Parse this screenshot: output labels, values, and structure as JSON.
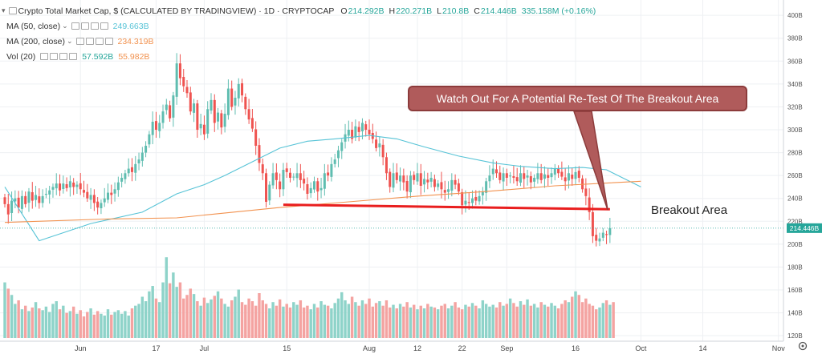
{
  "header": {
    "symbol": "Crypto Total Market Cap, $ (CALCULATED BY TRADINGVIEW) · 1D · CRYPTOCAP",
    "open_label": "O",
    "open": "214.292B",
    "high_label": "H",
    "high": "220.271B",
    "low_label": "L",
    "low": "210.8B",
    "close_label": "C",
    "close": "214.446B",
    "change": "335.158M (+0.16%)"
  },
  "indicators": [
    {
      "label": "MA (50, close)",
      "value": "249.663B",
      "color": "#56c3d6"
    },
    {
      "label": "MA (200, close)",
      "value": "234.319B",
      "color": "#f2924f"
    },
    {
      "label": "Vol (20)",
      "value": "57.592B",
      "value2": "55.982B",
      "color": "#26a69a",
      "color2": "#f2924f"
    }
  ],
  "annotations": {
    "callout": "Watch Out For A Potential Re-Test Of The Breakout Area",
    "breakout_label": "Breakout Area"
  },
  "colors": {
    "up": "#5fbdb0",
    "down": "#ef5350",
    "ma50": "#56c3d6",
    "ma200": "#f2924f",
    "vol_up": "#8ed3c9",
    "vol_down": "#f4a3a1",
    "line": "#e91e1e"
  },
  "chart_data": {
    "type": "candlestick",
    "ylim": [
      118,
      405
    ],
    "yticks": [
      120,
      140,
      160,
      180,
      200,
      220,
      240,
      260,
      280,
      300,
      320,
      340,
      360,
      380,
      400
    ],
    "ytick_labels": [
      "120B",
      "140B",
      "160B",
      "180B",
      "200B",
      "220B",
      "240B",
      "260B",
      "280B",
      "300B",
      "320B",
      "340B",
      "360B",
      "380B",
      "400B"
    ],
    "last_price_label": "214.446B",
    "x_labels": [
      {
        "label": "Jun",
        "bar": 22
      },
      {
        "label": "17",
        "bar": 44
      },
      {
        "label": "Jul",
        "bar": 58
      },
      {
        "label": "15",
        "bar": 82
      },
      {
        "label": "Aug",
        "bar": 106
      },
      {
        "label": "12",
        "bar": 120
      },
      {
        "label": "22",
        "bar": 133
      },
      {
        "label": "Sep",
        "bar": 146
      },
      {
        "label": "16",
        "bar": 166
      },
      {
        "label": "Oct",
        "bar": 185
      },
      {
        "label": "14",
        "bar": 203
      },
      {
        "label": "Nov",
        "bar": 225
      }
    ],
    "total_slots": 226,
    "closes": [
      235,
      226,
      238,
      240,
      232,
      242,
      235,
      246,
      238,
      243,
      236,
      242,
      244,
      247,
      250,
      253,
      247,
      253,
      249,
      255,
      250,
      252,
      248,
      245,
      240,
      243,
      236,
      232,
      236,
      240,
      245,
      243,
      248,
      254,
      258,
      262,
      266,
      263,
      270,
      274,
      280,
      286,
      296,
      307,
      300,
      306,
      316,
      322,
      310,
      330,
      358,
      345,
      338,
      332,
      316,
      323,
      300,
      305,
      296,
      318,
      326,
      306,
      315,
      302,
      314,
      336,
      320,
      328,
      340,
      330,
      318,
      309,
      301,
      286,
      271,
      262,
      237,
      252,
      262,
      256,
      248,
      265,
      263,
      258,
      259,
      262,
      256,
      253,
      244,
      249,
      255,
      246,
      249,
      262,
      260,
      270,
      274,
      282,
      289,
      296,
      300,
      292,
      303,
      298,
      306,
      300,
      296,
      292,
      284,
      288,
      276,
      262,
      250,
      262,
      256,
      260,
      254,
      246,
      260,
      256,
      262,
      251,
      257,
      254,
      258,
      250,
      253,
      248,
      245,
      248,
      256,
      252,
      246,
      234,
      238,
      236,
      240,
      238,
      242,
      246,
      255,
      260,
      266,
      262,
      256,
      262,
      258,
      260,
      258,
      255,
      262,
      257,
      260,
      254,
      258,
      262,
      256,
      261,
      258,
      262,
      266,
      262,
      259,
      255,
      262,
      257,
      263,
      258,
      248,
      242,
      228,
      207,
      203,
      205,
      210,
      208,
      214
    ],
    "ma50": [
      [
        0,
        250
      ],
      [
        10,
        203
      ],
      [
        25,
        218
      ],
      [
        40,
        228
      ],
      [
        50,
        244
      ],
      [
        58,
        252
      ],
      [
        64,
        260
      ],
      [
        72,
        272
      ],
      [
        80,
        284
      ],
      [
        88,
        290
      ],
      [
        96,
        292
      ],
      [
        106,
        295
      ],
      [
        114,
        292
      ],
      [
        122,
        285
      ],
      [
        132,
        277
      ],
      [
        142,
        271
      ],
      [
        150,
        268
      ],
      [
        160,
        266
      ],
      [
        168,
        267
      ],
      [
        175,
        265
      ],
      [
        185,
        250
      ]
    ],
    "ma200": [
      [
        0,
        219
      ],
      [
        30,
        222
      ],
      [
        50,
        223
      ],
      [
        60,
        226
      ],
      [
        80,
        232
      ],
      [
        100,
        237
      ],
      [
        120,
        242
      ],
      [
        140,
        246
      ],
      [
        160,
        251
      ],
      [
        185,
        255
      ]
    ],
    "breakout_line": [
      [
        81,
        234.5
      ],
      [
        176,
        230.5
      ]
    ],
    "volume": [
      0.62,
      0.55,
      0.48,
      0.38,
      0.42,
      0.32,
      0.36,
      0.3,
      0.34,
      0.4,
      0.33,
      0.31,
      0.35,
      0.29,
      0.38,
      0.41,
      0.32,
      0.36,
      0.28,
      0.3,
      0.35,
      0.27,
      0.31,
      0.24,
      0.29,
      0.33,
      0.26,
      0.3,
      0.27,
      0.25,
      0.32,
      0.26,
      0.29,
      0.31,
      0.27,
      0.3,
      0.25,
      0.33,
      0.36,
      0.38,
      0.46,
      0.41,
      0.52,
      0.58,
      0.44,
      0.4,
      0.62,
      0.9,
      0.61,
      0.73,
      0.57,
      0.62,
      0.44,
      0.48,
      0.55,
      0.49,
      0.41,
      0.36,
      0.45,
      0.39,
      0.43,
      0.47,
      0.52,
      0.44,
      0.38,
      0.35,
      0.42,
      0.46,
      0.54,
      0.4,
      0.37,
      0.44,
      0.41,
      0.36,
      0.5,
      0.42,
      0.38,
      0.33,
      0.4,
      0.36,
      0.43,
      0.35,
      0.38,
      0.34,
      0.4,
      0.37,
      0.42,
      0.34,
      0.36,
      0.32,
      0.38,
      0.34,
      0.41,
      0.37,
      0.36,
      0.33,
      0.39,
      0.44,
      0.51,
      0.42,
      0.38,
      0.46,
      0.4,
      0.36,
      0.42,
      0.38,
      0.44,
      0.35,
      0.39,
      0.41,
      0.36,
      0.42,
      0.34,
      0.37,
      0.33,
      0.38,
      0.35,
      0.4,
      0.34,
      0.37,
      0.32,
      0.36,
      0.33,
      0.38,
      0.35,
      0.34,
      0.32,
      0.36,
      0.38,
      0.33,
      0.36,
      0.4,
      0.34,
      0.32,
      0.37,
      0.35,
      0.39,
      0.36,
      0.33,
      0.42,
      0.38,
      0.35,
      0.37,
      0.34,
      0.4,
      0.36,
      0.38,
      0.44,
      0.39,
      0.35,
      0.41,
      0.37,
      0.43,
      0.36,
      0.38,
      0.34,
      0.4,
      0.37,
      0.35,
      0.39,
      0.36,
      0.33,
      0.38,
      0.42,
      0.4,
      0.46,
      0.52,
      0.48,
      0.4,
      0.44,
      0.38,
      0.36,
      0.32,
      0.34,
      0.39,
      0.42,
      0.37,
      0.4
    ]
  }
}
